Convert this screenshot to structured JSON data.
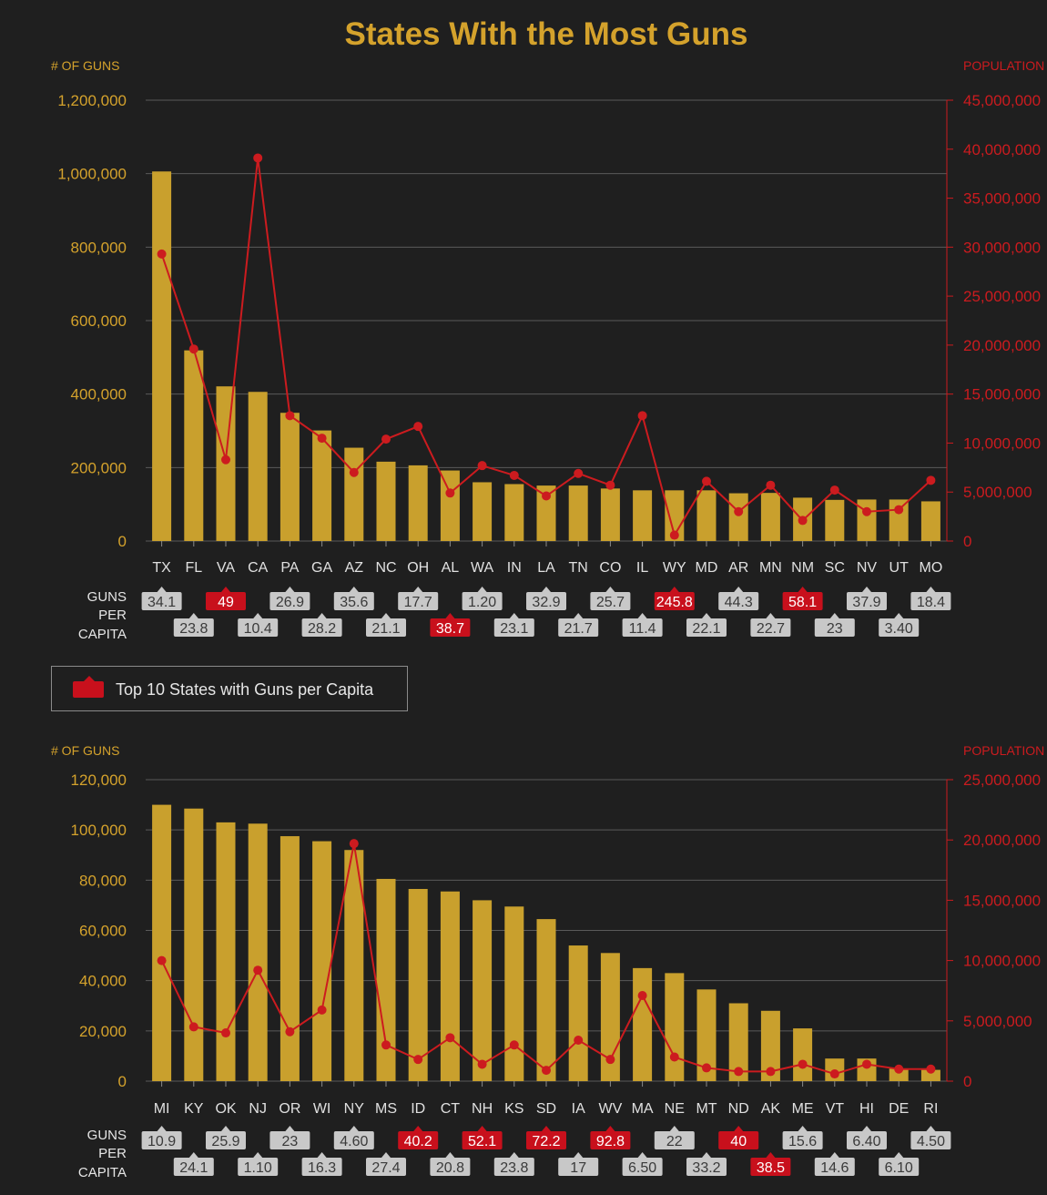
{
  "title": "States With the Most Guns",
  "legend": {
    "label": "Top 10 States with Guns per Capita",
    "color": "#c8101c"
  },
  "colors": {
    "bar": "#c9a02d",
    "line": "#cc1b1f",
    "left_axis": "#d4a22c",
    "right_axis": "#cc1b1f",
    "badge_gray": "#c8c8c8",
    "badge_red": "#c8101c"
  },
  "per_capita_label": [
    "GUNS",
    "PER",
    "CAPITA"
  ],
  "chart_data": [
    {
      "type": "bar",
      "left_axis_title": "# OF GUNS",
      "right_axis_title": "POPULATION",
      "ylim": [
        0,
        1200000
      ],
      "y2lim": [
        0,
        45000000
      ],
      "yticks": [
        0,
        200000,
        400000,
        600000,
        800000,
        1000000,
        1200000
      ],
      "y2ticks": [
        0,
        5000000,
        10000000,
        15000000,
        20000000,
        25000000,
        30000000,
        35000000,
        40000000,
        45000000
      ],
      "categories": [
        "TX",
        "FL",
        "VA",
        "CA",
        "PA",
        "GA",
        "AZ",
        "NC",
        "OH",
        "AL",
        "WA",
        "IN",
        "LA",
        "TN",
        "CO",
        "IL",
        "WY",
        "MD",
        "AR",
        "MN",
        "NM",
        "SC",
        "NV",
        "UT",
        "MO"
      ],
      "series": [
        {
          "name": "# of Guns",
          "type": "bar",
          "values": [
            1006000,
            519000,
            421000,
            406000,
            349000,
            301000,
            254000,
            216000,
            206000,
            192000,
            160000,
            155000,
            151000,
            151000,
            143000,
            138000,
            138000,
            138000,
            130000,
            131000,
            118000,
            112000,
            113000,
            113000,
            108000
          ]
        },
        {
          "name": "Population",
          "type": "line",
          "values": [
            29300000,
            19600000,
            8300000,
            39100000,
            12800000,
            10500000,
            7000000,
            10400000,
            11700000,
            4900000,
            7700000,
            6700000,
            4600000,
            6900000,
            5700000,
            12800000,
            600000,
            6100000,
            3000000,
            5700000,
            2100000,
            5200000,
            3000000,
            3200000,
            6200000
          ]
        }
      ],
      "guns_per_capita": [
        "34.1",
        "23.8",
        "49",
        "10.4",
        "26.9",
        "28.2",
        "35.6",
        "21.1",
        "17.7",
        "38.7",
        "1.20",
        "23.1",
        "32.9",
        "21.7",
        "25.7",
        "11.4",
        "245.8",
        "22.1",
        "44.3",
        "22.7",
        "58.1",
        "23",
        "37.9",
        "3.40",
        "18.4"
      ],
      "top10": [
        "VA",
        "AL",
        "WY",
        "NM"
      ]
    },
    {
      "type": "bar",
      "left_axis_title": "# OF GUNS",
      "right_axis_title": "POPULATION",
      "ylim": [
        0,
        120000
      ],
      "y2lim": [
        0,
        25000000
      ],
      "yticks": [
        0,
        20000,
        40000,
        60000,
        80000,
        100000,
        120000
      ],
      "y2ticks": [
        0,
        5000000,
        10000000,
        15000000,
        20000000,
        25000000
      ],
      "categories": [
        "MI",
        "KY",
        "OK",
        "NJ",
        "OR",
        "WI",
        "NY",
        "MS",
        "ID",
        "CT",
        "NH",
        "KS",
        "SD",
        "IA",
        "WV",
        "MA",
        "NE",
        "MT",
        "ND",
        "AK",
        "ME",
        "VT",
        "HI",
        "DE",
        "RI"
      ],
      "series": [
        {
          "name": "# of Guns",
          "type": "bar",
          "values": [
            110000,
            108500,
            103000,
            102500,
            97500,
            95500,
            92000,
            80500,
            76500,
            75500,
            72000,
            69500,
            64500,
            54000,
            51000,
            45000,
            43000,
            36500,
            31000,
            28000,
            21000,
            9000,
            9000,
            5000,
            4500
          ]
        },
        {
          "name": "Population",
          "type": "line",
          "values": [
            10000000,
            4500000,
            4000000,
            9200000,
            4100000,
            5900000,
            19700000,
            3000000,
            1800000,
            3600000,
            1400000,
            3000000,
            900000,
            3400000,
            1800000,
            7100000,
            2000000,
            1100000,
            800000,
            800000,
            1400000,
            600000,
            1400000,
            1000000,
            1000000
          ]
        }
      ],
      "guns_per_capita": [
        "10.9",
        "24.1",
        "25.9",
        "1.10",
        "23",
        "16.3",
        "4.60",
        "27.4",
        "40.2",
        "20.8",
        "52.1",
        "23.8",
        "72.2",
        "17",
        "92.8",
        "6.50",
        "22",
        "33.2",
        "40",
        "38.5",
        "15.6",
        "14.6",
        "6.40",
        "6.10",
        "4.50"
      ],
      "top10": [
        "ID",
        "NH",
        "SD",
        "WV",
        "ND",
        "AK"
      ]
    }
  ]
}
